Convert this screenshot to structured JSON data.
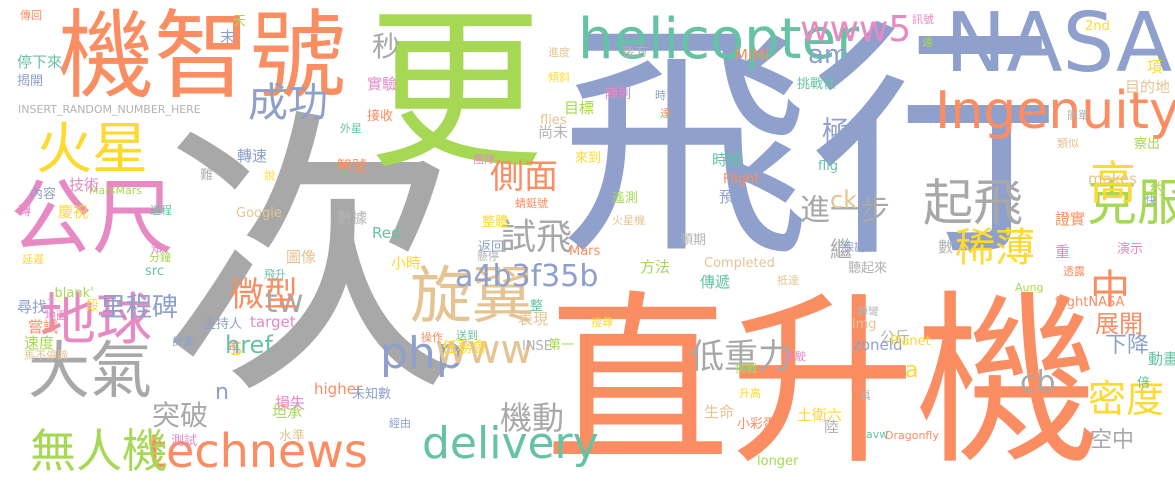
{
  "palette": {
    "grey": "#a8a8a8",
    "blue": "#8ea0cb",
    "orange": "#fb8d62",
    "green": "#a6d854",
    "pink": "#e78ac3",
    "yellow": "#ffd92f",
    "teal": "#66c2a5",
    "tan": "#e5c494",
    "lightgrey": "#b3b3b3"
  },
  "words": [
    {
      "text": "次",
      "color": "#a8a8a8"
    },
    {
      "text": "飛行",
      "color": "#8ea0cb"
    },
    {
      "text": "直升機",
      "color": "#fb8d62"
    },
    {
      "text": "更",
      "color": "#a6d854"
    },
    {
      "text": "機智號",
      "color": "#fb8d62"
    },
    {
      "text": "NASA",
      "color": "#8ea0cb"
    },
    {
      "text": "公尺",
      "color": "#e78ac3"
    },
    {
      "text": "helicopter",
      "color": "#66c2a5"
    },
    {
      "text": "Ingenuity",
      "color": "#fb8d62"
    },
    {
      "text": "火星",
      "color": "#ffd92f"
    },
    {
      "text": "大氣",
      "color": "#a8a8a8"
    },
    {
      "text": "地球",
      "color": "#e78ac3"
    },
    {
      "text": "旋翼",
      "color": "#e5c494"
    },
    {
      "text": "technews",
      "color": "#fb8d62"
    },
    {
      "text": "無人機",
      "color": "#a6d854"
    },
    {
      "text": "起飛",
      "color": "#a8a8a8"
    },
    {
      "text": "克服",
      "color": "#a6d854"
    },
    {
      "text": "高",
      "color": "#ffd92f"
    },
    {
      "text": "稀薄",
      "color": "#ffd92f"
    },
    {
      "text": "delivery",
      "color": "#66c2a5"
    },
    {
      "text": "php",
      "color": "#8ea0cb"
    },
    {
      "text": "中",
      "color": "#fb8d62"
    },
    {
      "text": "密度",
      "color": "#ffd92f"
    },
    {
      "text": "www",
      "color": "#e5c494"
    },
    {
      "text": "側面",
      "color": "#fb8d62"
    },
    {
      "text": "試飛",
      "color": "#a8a8a8"
    },
    {
      "text": "低重力",
      "color": "#a8a8a8"
    },
    {
      "text": "www5",
      "color": "#e78ac3"
    },
    {
      "text": "a4b3f35b",
      "color": "#8ea0cb"
    },
    {
      "text": "tw",
      "color": "#a8a8a8"
    },
    {
      "text": "成功",
      "color": "#8ea0cb"
    },
    {
      "text": "進一步",
      "color": "#a8a8a8"
    },
    {
      "text": "展開",
      "color": "#fb8d62"
    },
    {
      "text": "下降",
      "color": "#8ea0cb"
    },
    {
      "text": "空中",
      "color": "#a8a8a8"
    },
    {
      "text": "微型",
      "color": "#fb8d62"
    },
    {
      "text": "機動",
      "color": "#a8a8a8"
    },
    {
      "text": "突破",
      "color": "#a8a8a8"
    },
    {
      "text": "里程碑",
      "color": "#8ea0cb"
    },
    {
      "text": "cb",
      "color": "#a8a8a8"
    },
    {
      "text": "amp",
      "color": "#8ea0cb"
    },
    {
      "text": "秒",
      "color": "#a8a8a8"
    },
    {
      "text": "極限",
      "color": "#8ea0cb"
    },
    {
      "text": "ck",
      "color": "#e5c494"
    },
    {
      "text": "s",
      "color": "#ffd92f"
    },
    {
      "text": "href",
      "color": "#66c2a5"
    },
    {
      "text": "n",
      "color": "#8ea0cb"
    },
    {
      "text": "a",
      "color": "#ffd92f"
    },
    {
      "text": "繼",
      "color": "#a8a8a8"
    }
  ],
  "small_words": [
    "傳回",
    "天",
    "末",
    "訊號",
    "2nd",
    "停下來",
    "進度",
    "後方",
    "MiMi",
    "遠",
    "揭開",
    "實驗",
    "傾斜",
    "挑戰性",
    "目的地",
    "INSERT_RANDOM_NUMBER_HERE",
    "接收",
    "目標",
    "時",
    "陣列",
    "項",
    "外星",
    "flies",
    "尚未",
    "達",
    "察出",
    "轉速",
    "團隊",
    "來到",
    "時間",
    "類似",
    "難",
    "智號",
    "MarsMars",
    "內容",
    "技術",
    "說",
    "flig",
    "makes",
    "簡單",
    "Flight",
    "約",
    "快",
    "轉",
    "慶祝",
    "過程",
    "Google",
    "數據",
    "蜻蜓號",
    "遙測",
    "預計",
    "知",
    "整體",
    "Red",
    "火星機",
    "預期",
    "證實",
    "分鐘",
    "返回",
    "重",
    "延遲",
    "src",
    "圖像",
    "懸停",
    "Mars",
    "方法",
    "探勘",
    "演示",
    "小時",
    "飛升",
    "Completed",
    "數",
    "透露",
    "_blank'",
    "尋找",
    "地面",
    "段",
    "傳遞",
    "抵達",
    "聽起來",
    "嘗試",
    "Aung",
    "主持人",
    "target",
    "搜尋",
    "整",
    "表現",
    "轉彎",
    "flightNASA",
    "速度",
    "計畫",
    "年",
    "任務會",
    "送到",
    "img",
    "公斤",
    "操作",
    "第一",
    "zoneid",
    "駕駛",
    "Planet",
    "動畫",
    "馬不停蹄",
    "INSE",
    "higher",
    "挑戰",
    "未知數",
    "損失",
    "升高",
    "倍",
    "生命",
    "具",
    "小彩蛋",
    "坦承",
    "經由",
    "測試",
    "土衛六",
    "avw",
    "水準",
    "陸",
    "Dragonfly",
    "longer"
  ]
}
